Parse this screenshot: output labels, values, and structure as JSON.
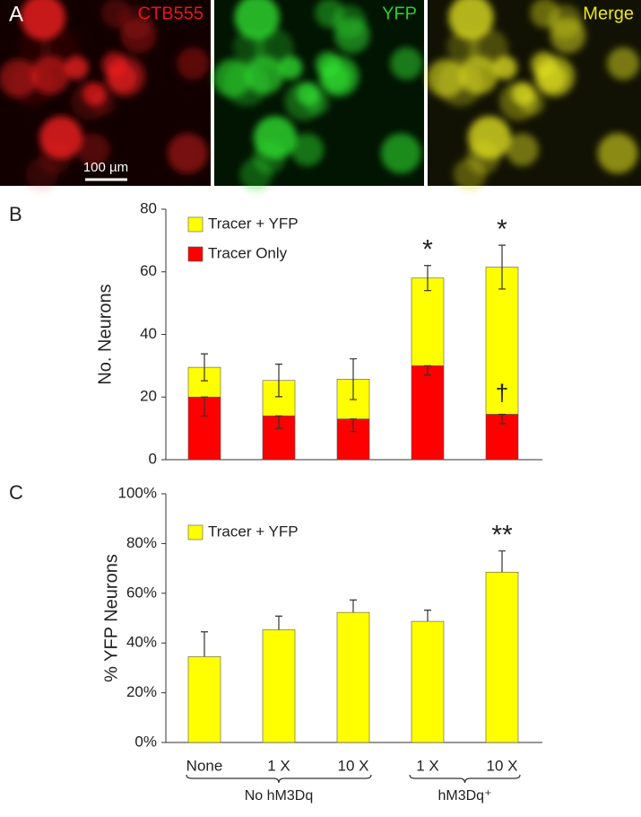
{
  "panel_a": {
    "label": "A",
    "images": [
      {
        "label": "CTB555",
        "color": "#e8141b"
      },
      {
        "label": "YFP",
        "color": "#2ecc2e"
      },
      {
        "label": "Merge",
        "color": "#e8e81b"
      }
    ],
    "scale_bar": "100 µm"
  },
  "chart_data": [
    {
      "type": "stacked_bar",
      "panel_label": "B",
      "ylabel": "No. Neurons",
      "ylim": [
        0,
        80
      ],
      "yticks": [
        0,
        20,
        40,
        60,
        80
      ],
      "legend": "upper left",
      "series": [
        {
          "name": "Tracer Only",
          "color": "#ff0000",
          "values": [
            20,
            14,
            13,
            30,
            14.5
          ],
          "errors": [
            6,
            4,
            4,
            3,
            3
          ]
        },
        {
          "name": "Tracer + YFP",
          "color": "#ffff00",
          "values": [
            9.5,
            11.3,
            12.7,
            28,
            47
          ],
          "errors": [
            4.3,
            5.2,
            6.5,
            4,
            7
          ]
        }
      ],
      "significance": [
        null,
        null,
        null,
        "*",
        "*"
      ],
      "significance_within": [
        null,
        null,
        null,
        null,
        "†"
      ]
    },
    {
      "type": "bar",
      "panel_label": "C",
      "ylabel": "% YFP Neurons",
      "categories": [
        "None",
        "1 X",
        "10 X",
        "1 X",
        "10 X"
      ],
      "category_groups": [
        "No hM3Dq",
        "No hM3Dq",
        "No hM3Dq",
        "hM3Dq⁺",
        "hM3Dq⁺"
      ],
      "ylim": [
        0,
        100
      ],
      "yticks": [
        {
          "value": 0,
          "label": "0%"
        },
        {
          "value": 20,
          "label": "20%"
        },
        {
          "value": 40,
          "label": "40%"
        },
        {
          "value": 60,
          "label": "60%"
        },
        {
          "value": 80,
          "label": "80%"
        },
        {
          "value": 100,
          "label": "100%"
        }
      ],
      "legend": "upper left",
      "series": [
        {
          "name": "Tracer + YFP",
          "color": "#ffff00",
          "values": [
            34.5,
            45.3,
            52.3,
            48.7,
            68.5
          ],
          "errors": [
            10,
            5.5,
            5,
            4.5,
            8.5
          ]
        }
      ],
      "significance": [
        null,
        null,
        null,
        null,
        "**"
      ]
    }
  ]
}
